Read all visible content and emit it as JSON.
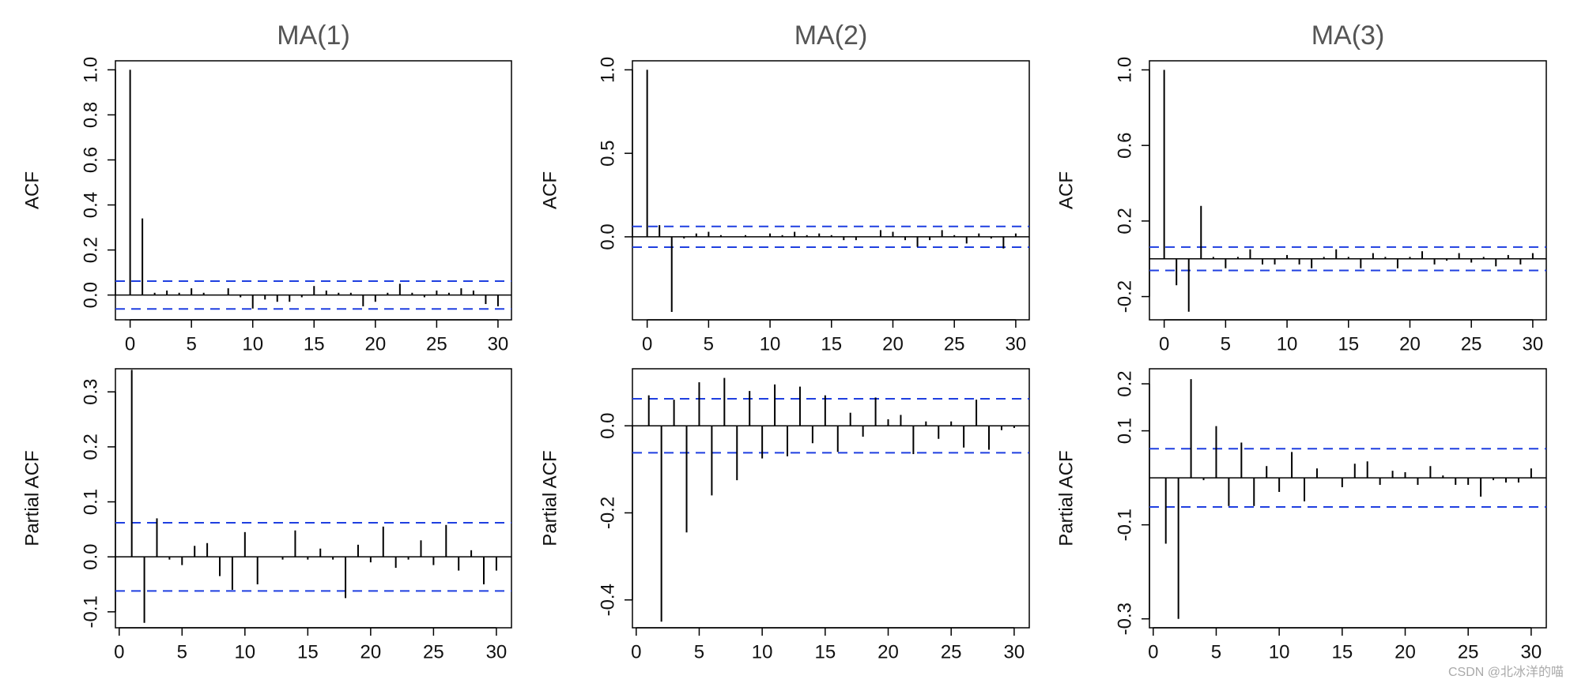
{
  "chart_data": [
    {
      "type": "acf",
      "title": "MA(1)",
      "ylabel": "ACF",
      "x": [
        0,
        1,
        2,
        3,
        4,
        5,
        6,
        7,
        8,
        9,
        10,
        11,
        12,
        13,
        14,
        15,
        16,
        17,
        18,
        19,
        20,
        21,
        22,
        23,
        24,
        25,
        26,
        27,
        28,
        29,
        30
      ],
      "values": [
        1.0,
        0.34,
        0.01,
        0.02,
        0.01,
        0.03,
        0.01,
        0.0,
        0.03,
        -0.01,
        -0.06,
        -0.02,
        -0.03,
        -0.03,
        -0.01,
        0.04,
        0.02,
        0.01,
        0.01,
        -0.05,
        -0.03,
        0.01,
        0.05,
        0.01,
        -0.01,
        0.02,
        0.01,
        0.03,
        0.02,
        -0.04,
        -0.05
      ],
      "xlim": [
        -1.2,
        31.1
      ],
      "ylim": [
        -0.11,
        1.04
      ],
      "xticks": [
        0,
        5,
        10,
        15,
        20,
        25,
        30
      ],
      "yticks": [
        {
          "value": 0,
          "label": "0.0"
        },
        {
          "value": 0.2,
          "label": "0.2"
        },
        {
          "value": 0.4,
          "label": "0.4"
        },
        {
          "value": 0.6,
          "label": "0.6"
        },
        {
          "value": 0.8,
          "label": "0.8"
        },
        {
          "value": 1,
          "label": "1.0"
        }
      ],
      "ci": [
        -0.062,
        0.062
      ],
      "color": "#000000",
      "ci_color": "#1f3fe0"
    },
    {
      "type": "acf",
      "title": "MA(2)",
      "ylabel": "ACF",
      "x": [
        0,
        1,
        2,
        3,
        4,
        5,
        6,
        7,
        8,
        9,
        10,
        11,
        12,
        13,
        14,
        15,
        16,
        17,
        18,
        19,
        20,
        21,
        22,
        23,
        24,
        25,
        26,
        27,
        28,
        29,
        30
      ],
      "values": [
        1.0,
        0.07,
        -0.45,
        -0.01,
        0.02,
        0.03,
        0.01,
        0.0,
        0.01,
        0.0,
        0.02,
        0.01,
        0.03,
        0.01,
        0.02,
        0.01,
        -0.02,
        -0.02,
        0.0,
        0.04,
        0.03,
        -0.02,
        -0.06,
        -0.02,
        0.04,
        0.01,
        -0.04,
        0.02,
        -0.01,
        -0.07,
        0.02
      ],
      "xlim": [
        -1.2,
        31.1
      ],
      "ylim": [
        -0.497,
        1.054
      ],
      "xticks": [
        0,
        5,
        10,
        15,
        20,
        25,
        30
      ],
      "yticks": [
        {
          "value": 0,
          "label": "0.0"
        },
        {
          "value": 0.5,
          "label": "0.5"
        },
        {
          "value": 1,
          "label": "1.0"
        }
      ],
      "ci": [
        -0.062,
        0.062
      ],
      "color": "#000000",
      "ci_color": "#1f3fe0"
    },
    {
      "type": "acf",
      "title": "MA(3)",
      "ylabel": "ACF",
      "x": [
        0,
        1,
        2,
        3,
        4,
        5,
        6,
        7,
        8,
        9,
        10,
        11,
        12,
        13,
        14,
        15,
        16,
        17,
        18,
        19,
        20,
        21,
        22,
        23,
        24,
        25,
        26,
        27,
        28,
        29,
        30
      ],
      "values": [
        1.0,
        -0.14,
        -0.28,
        0.28,
        0.01,
        -0.05,
        0.01,
        0.05,
        -0.03,
        -0.03,
        0.02,
        -0.03,
        -0.05,
        0.01,
        0.05,
        0.01,
        -0.05,
        0.03,
        0.01,
        -0.05,
        0.01,
        0.04,
        -0.03,
        -0.01,
        0.03,
        -0.02,
        0.01,
        -0.04,
        0.02,
        -0.03,
        0.03
      ],
      "xlim": [
        -1.2,
        31.1
      ],
      "ylim": [
        -0.323,
        1.048
      ],
      "xticks": [
        0,
        5,
        10,
        15,
        20,
        25,
        30
      ],
      "yticks": [
        -0.2,
        0.2,
        0.6,
        {
          "value": 1,
          "label": "1.0"
        }
      ],
      "ci": [
        -0.062,
        0.062
      ],
      "color": "#000000",
      "ci_color": "#1f3fe0"
    },
    {
      "type": "acf",
      "ylabel": "Partial ACF",
      "x": [
        1,
        2,
        3,
        4,
        5,
        6,
        7,
        8,
        9,
        10,
        11,
        12,
        13,
        14,
        15,
        16,
        17,
        18,
        19,
        20,
        21,
        22,
        23,
        24,
        25,
        26,
        27,
        28,
        29,
        30
      ],
      "values": [
        0.34,
        -0.12,
        0.07,
        -0.005,
        -0.015,
        0.02,
        0.025,
        -0.035,
        -0.06,
        0.045,
        -0.05,
        0.0,
        -0.005,
        0.048,
        -0.005,
        0.015,
        -0.005,
        -0.075,
        0.022,
        -0.01,
        0.055,
        -0.02,
        -0.005,
        0.03,
        -0.015,
        0.058,
        -0.025,
        0.012,
        -0.05,
        -0.025
      ],
      "xlim": [
        -0.3,
        31.2
      ],
      "ylim": [
        -0.129,
        0.342
      ],
      "xticks": [
        0,
        5,
        10,
        15,
        20,
        25,
        30
      ],
      "yticks": [
        -0.1,
        {
          "value": 0,
          "label": "0.0"
        },
        0.1,
        0.2,
        0.3
      ],
      "ci": [
        -0.062,
        0.062
      ],
      "color": "#000000",
      "ci_color": "#1f3fe0"
    },
    {
      "type": "acf",
      "ylabel": "Partial ACF",
      "x": [
        1,
        2,
        3,
        4,
        5,
        6,
        7,
        8,
        9,
        10,
        11,
        12,
        13,
        14,
        15,
        16,
        17,
        18,
        19,
        20,
        21,
        22,
        23,
        24,
        25,
        26,
        27,
        28,
        29,
        30
      ],
      "values": [
        0.07,
        -0.45,
        0.06,
        -0.245,
        0.1,
        -0.16,
        0.11,
        -0.125,
        0.08,
        -0.075,
        0.095,
        -0.07,
        0.09,
        -0.04,
        0.07,
        -0.06,
        0.03,
        -0.025,
        0.065,
        0.015,
        0.025,
        -0.065,
        0.01,
        -0.03,
        0.01,
        -0.05,
        0.06,
        -0.055,
        -0.01,
        -0.005
      ],
      "xlim": [
        -0.3,
        31.2
      ],
      "ylim": [
        -0.464,
        0.131
      ],
      "xticks": [
        0,
        5,
        10,
        15,
        20,
        25,
        30
      ],
      "yticks": [
        -0.4,
        -0.2,
        {
          "value": 0,
          "label": "0.0"
        }
      ],
      "ci": [
        -0.062,
        0.062
      ],
      "color": "#000000",
      "ci_color": "#1f3fe0"
    },
    {
      "type": "acf",
      "ylabel": "Partial ACF",
      "x": [
        1,
        2,
        3,
        4,
        5,
        6,
        7,
        8,
        9,
        10,
        11,
        12,
        13,
        14,
        15,
        16,
        17,
        18,
        19,
        20,
        21,
        22,
        23,
        24,
        25,
        26,
        27,
        28,
        29,
        30
      ],
      "values": [
        -0.14,
        -0.3,
        0.21,
        -0.005,
        0.11,
        -0.06,
        0.075,
        -0.06,
        0.025,
        -0.03,
        0.055,
        -0.05,
        0.02,
        0.0,
        -0.02,
        0.03,
        0.035,
        -0.015,
        0.015,
        0.012,
        -0.015,
        0.025,
        0.005,
        -0.015,
        -0.015,
        -0.04,
        -0.005,
        -0.01,
        -0.01,
        0.02
      ],
      "xlim": [
        -0.3,
        31.2
      ],
      "ylim": [
        -0.319,
        0.232
      ],
      "xticks": [
        0,
        5,
        10,
        15,
        20,
        25,
        30
      ],
      "yticks": [
        -0.3,
        -0.1,
        0.1,
        0.2
      ],
      "ci": [
        -0.062,
        0.062
      ],
      "color": "#000000",
      "ci_color": "#1f3fe0"
    }
  ],
  "watermark": "CSDN @北冰洋的喵"
}
